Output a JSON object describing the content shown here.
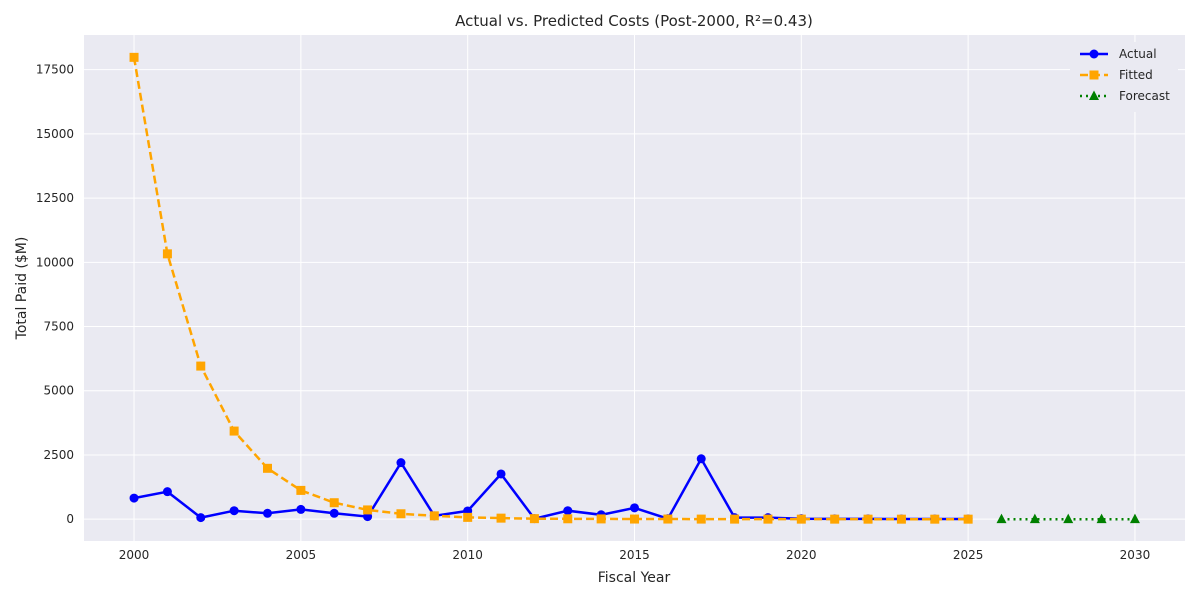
{
  "chart_data": {
    "type": "line",
    "title": "Actual vs. Predicted Costs (Post-2000, R²=0.43)",
    "xlabel": "Fiscal Year",
    "ylabel": "Total Paid ($M)",
    "xlim": [
      1998.5,
      2031.5
    ],
    "ylim": [
      -850,
      18850
    ],
    "xticks": [
      2000,
      2005,
      2010,
      2015,
      2020,
      2025,
      2030
    ],
    "yticks": [
      0,
      2500,
      5000,
      7500,
      10000,
      12500,
      15000,
      17500
    ],
    "grid": true,
    "legend": "top-right",
    "series": [
      {
        "name": "Actual",
        "color": "#0000ff",
        "line_style": "solid",
        "marker": "circle",
        "x": [
          2000,
          2001,
          2002,
          2003,
          2004,
          2005,
          2006,
          2007,
          2008,
          2009,
          2010,
          2011,
          2012,
          2013,
          2014,
          2015,
          2016,
          2017,
          2018,
          2019,
          2020,
          2021,
          2022,
          2023,
          2024,
          2025
        ],
        "y": [
          820,
          1070,
          60,
          330,
          230,
          380,
          230,
          100,
          2200,
          130,
          320,
          1760,
          20,
          330,
          170,
          440,
          20,
          2350,
          60,
          60,
          20,
          10,
          10,
          5,
          5,
          5
        ]
      },
      {
        "name": "Fitted",
        "color": "#ffa500",
        "line_style": "dashed",
        "marker": "square",
        "x": [
          2000,
          2001,
          2002,
          2003,
          2004,
          2005,
          2006,
          2007,
          2008,
          2009,
          2010,
          2011,
          2012,
          2013,
          2014,
          2015,
          2016,
          2017,
          2018,
          2019,
          2020,
          2021,
          2022,
          2023,
          2024,
          2025
        ],
        "y": [
          17980,
          10330,
          5960,
          3430,
          1980,
          1120,
          640,
          360,
          210,
          130,
          70,
          40,
          20,
          15,
          10,
          5,
          5,
          3,
          2,
          1,
          1,
          1,
          0,
          0,
          0,
          0
        ]
      },
      {
        "name": "Forecast",
        "color": "#008000",
        "line_style": "dotted",
        "marker": "triangle",
        "x": [
          2026,
          2027,
          2028,
          2029,
          2030
        ],
        "y": [
          0,
          0,
          0,
          0,
          0
        ]
      }
    ]
  }
}
